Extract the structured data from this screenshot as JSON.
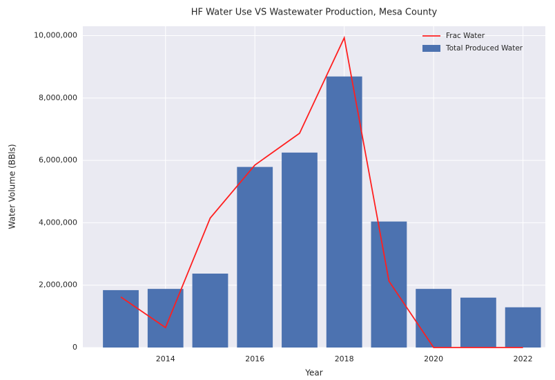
{
  "chart_data": {
    "type": "bar",
    "title": "HF Water Use VS Wastewater Production, Mesa County",
    "xlabel": "Year",
    "ylabel": "Water Volume (BBls)",
    "x": [
      2013,
      2014,
      2015,
      2016,
      2017,
      2018,
      2019,
      2020,
      2021,
      2022
    ],
    "series": [
      {
        "name": "Frac Water",
        "type": "line",
        "color": "#ff1f1f",
        "values": [
          1620000,
          640000,
          4150000,
          5850000,
          6870000,
          9930000,
          2130000,
          0,
          0,
          0
        ]
      },
      {
        "name": "Total Produced Water",
        "type": "bar",
        "color": "#4c72b0",
        "values": [
          1840000,
          1880000,
          2370000,
          5790000,
          6250000,
          8690000,
          4040000,
          1880000,
          1600000,
          1290000
        ]
      }
    ],
    "xlim": [
      2012.15,
      2022.5
    ],
    "xticks": [
      2014,
      2016,
      2018,
      2020,
      2022
    ],
    "ylim": [
      0,
      10300000
    ],
    "yticks": [
      0,
      {
        "value": 2000000,
        "label": "2,000,000"
      },
      {
        "value": 4000000,
        "label": "4,000,000"
      },
      {
        "value": 6000000,
        "label": "6,000,000"
      },
      {
        "value": 8000000,
        "label": "8,000,000"
      },
      {
        "value": 10000000,
        "label": "10,000,000"
      }
    ],
    "grid": true,
    "legend": "upper right"
  }
}
